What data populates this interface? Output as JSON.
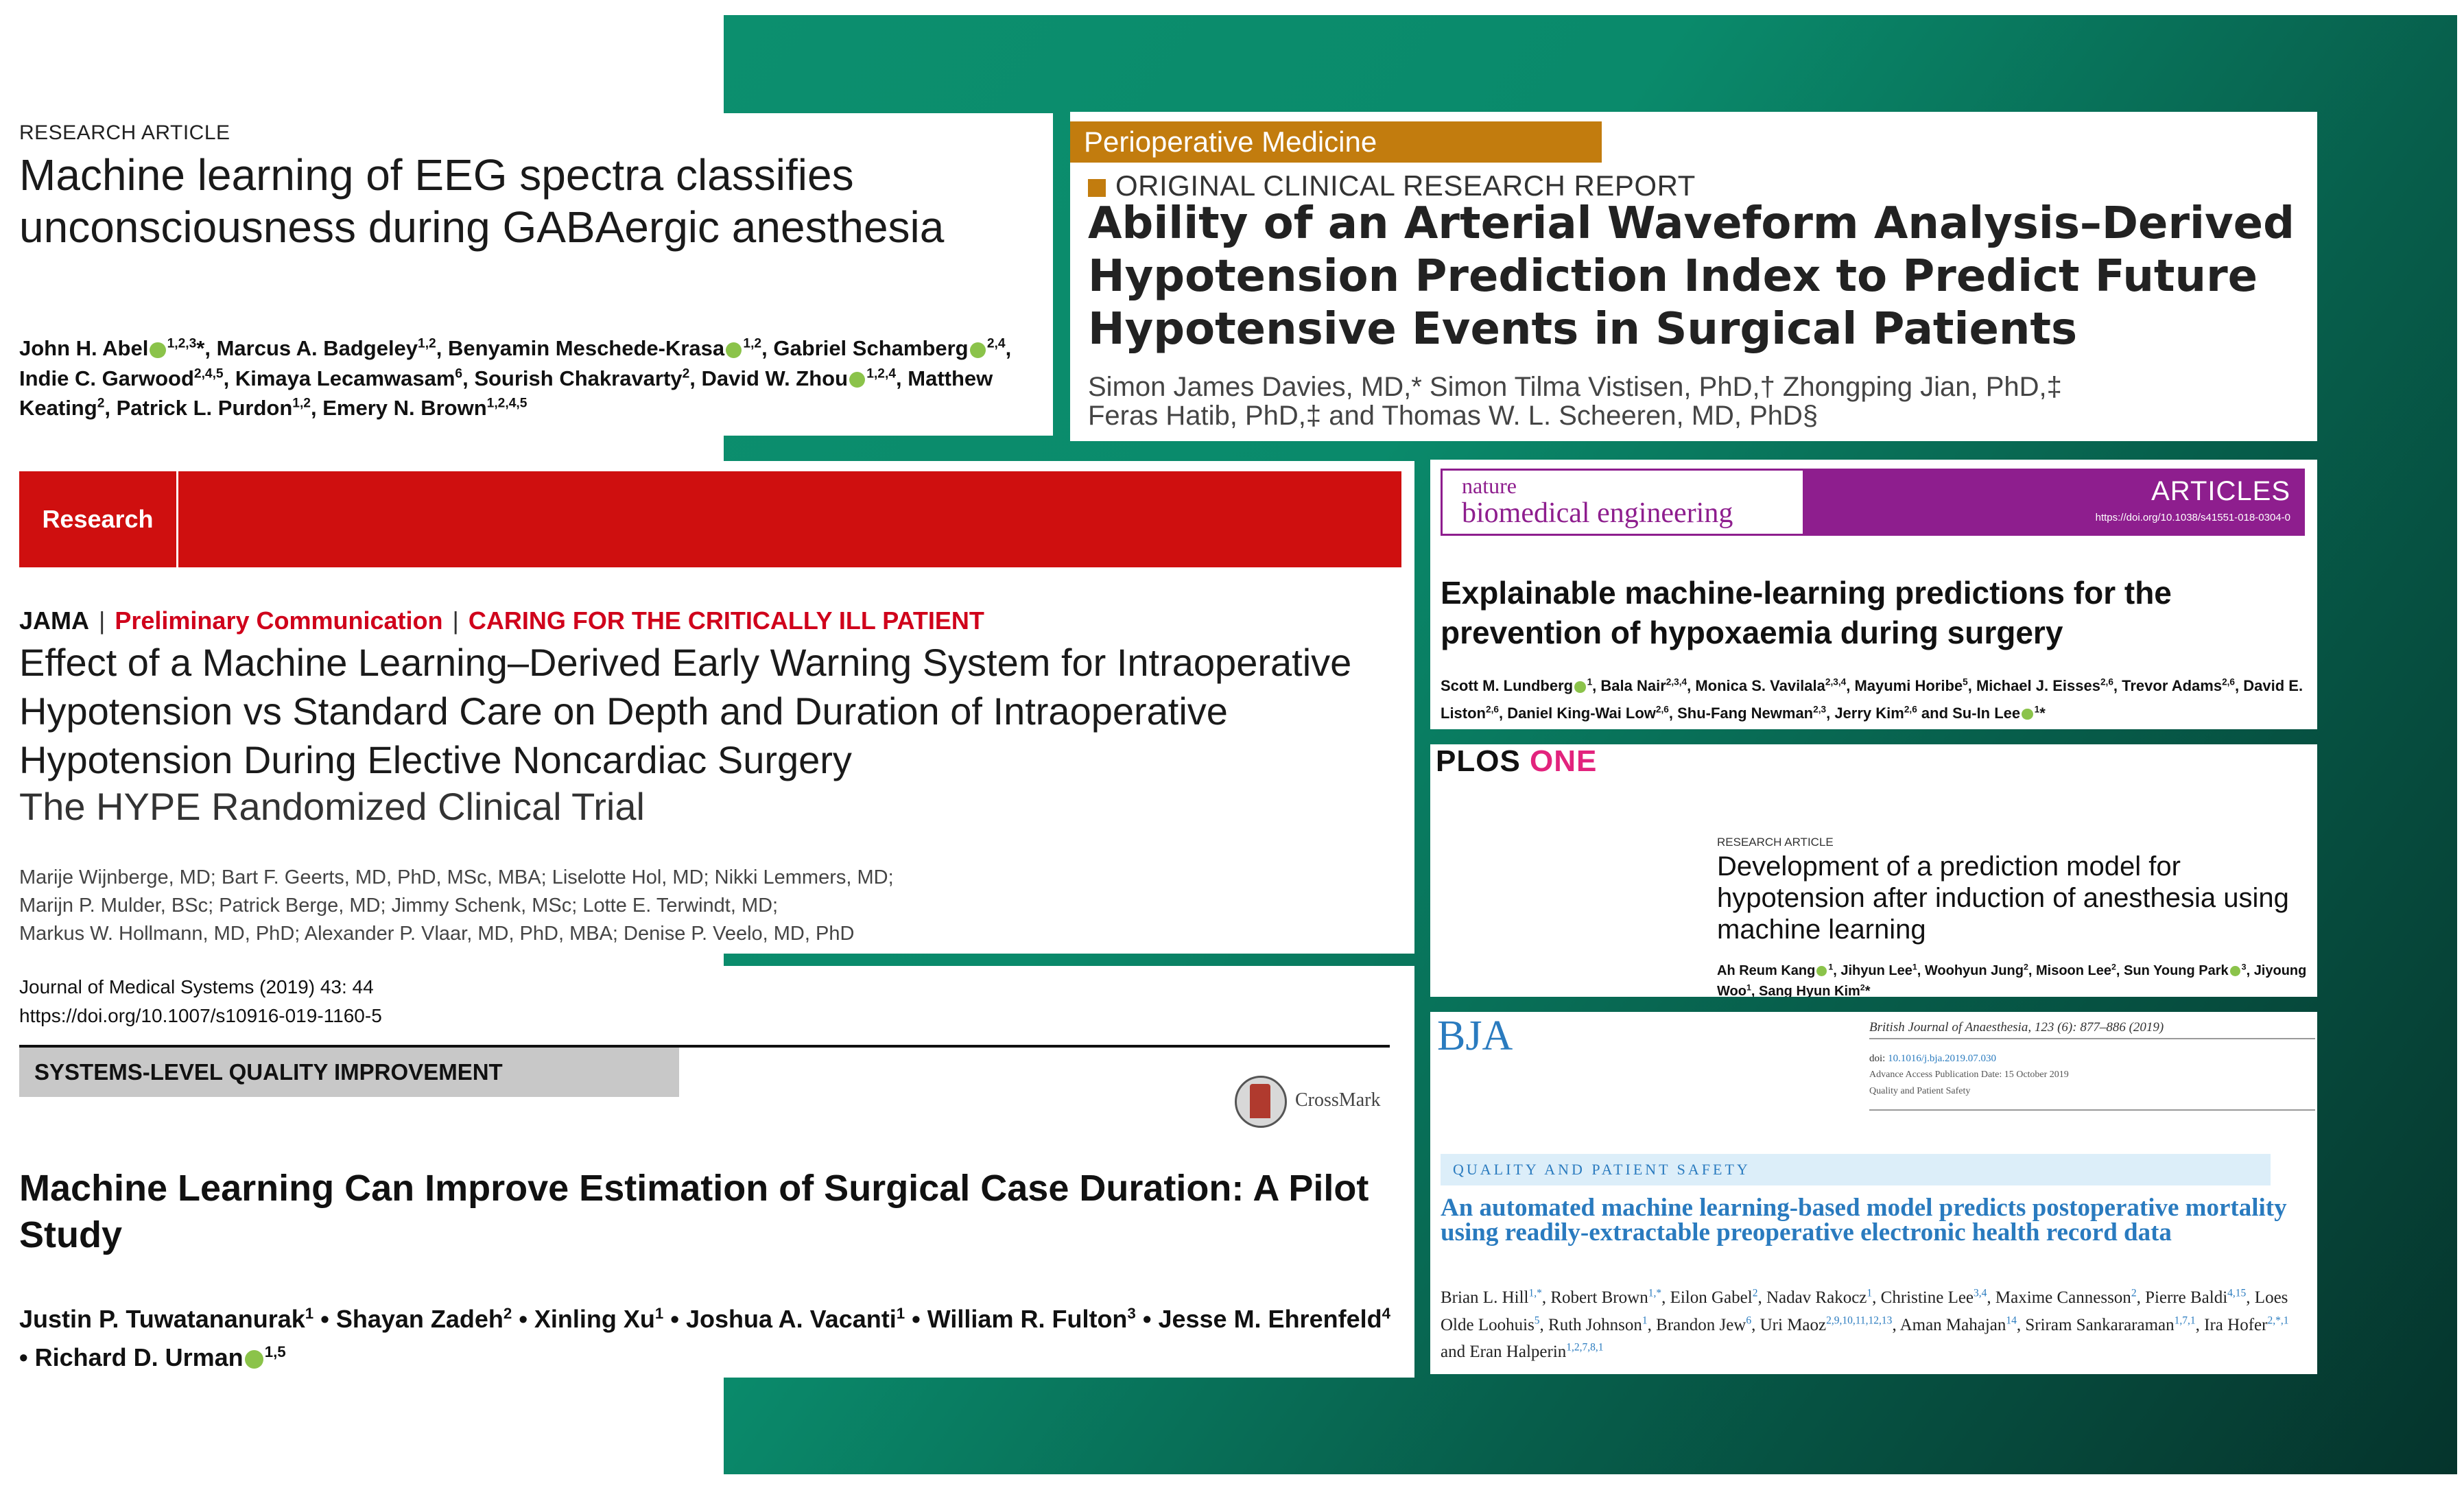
{
  "eeg": {
    "label": "RESEARCH ARTICLE",
    "title": "Machine learning of EEG spectra classifies unconsciousness during GABAergic anesthesia",
    "authors": [
      {
        "name": "John H. Abel",
        "sup": "1,2,3",
        "orcid": true,
        "suffix": "*,"
      },
      {
        "name": " Marcus A. Badgeley",
        "sup": "1,2",
        "suffix": ","
      },
      {
        "name": " Benyamin Meschede-Krasa",
        "orcid": true,
        "sup": "1,2",
        "suffix": ","
      },
      {
        "name": " Gabriel Schamberg",
        "orcid": true,
        "sup": "2,4",
        "suffix": ","
      },
      {
        "name": " Indie C. Garwood",
        "sup": "2,4,5",
        "suffix": ","
      },
      {
        "name": " Kimaya Lecamwasam",
        "sup": "6",
        "suffix": ","
      },
      {
        "name": " Sourish Chakravarty",
        "sup": "2",
        "suffix": ","
      },
      {
        "name": " David W. Zhou",
        "orcid": true,
        "sup": "1,2,4",
        "suffix": ","
      },
      {
        "name": " Matthew Keating",
        "sup": "2",
        "suffix": ","
      },
      {
        "name": " Patrick L. Purdon",
        "sup": "1,2",
        "suffix": ","
      },
      {
        "name": " Emery N. Brown",
        "sup": "1,2,4,5",
        "suffix": ""
      }
    ]
  },
  "periop": {
    "band": "Perioperative Medicine",
    "section": "ORIGINAL CLINICAL RESEARCH REPORT",
    "title": "Ability of an Arterial Waveform Analysis–Derived Hypotension Prediction Index to Predict Future Hypotensive Events in Surgical Patients",
    "authors_line1": "Simon James Davies, MD,* Simon Tilma Vistisen, PhD,† Zhongping Jian, PhD,‡",
    "authors_line2": "Feras Hatib, PhD,‡ and Thomas W. L. Scheeren, MD, PhD§"
  },
  "jama": {
    "band_label": "Research",
    "journal": "JAMA",
    "category1": "Preliminary Communication",
    "category2": "CARING FOR THE CRITICALLY ILL PATIENT",
    "title": "Effect of a Machine Learning–Derived Early Warning System for Intraoperative Hypotension vs Standard Care on Depth and Duration of Intraoperative Hypotension During Elective Noncardiac Surgery",
    "subtitle": "The HYPE Randomized Clinical Trial",
    "authors_line1": "Marije Wijnberge, MD; Bart F. Geerts, MD, PhD, MSc, MBA; Liselotte Hol, MD; Nikki Lemmers, MD;",
    "authors_line2": "Marijn P. Mulder, BSc; Patrick Berge, MD; Jimmy Schenk, MSc; Lotte E. Terwindt, MD;",
    "authors_line3": "Markus W. Hollmann, MD, PhD; Alexander P. Vlaar, MD, PhD, MBA; Denise P. Veelo, MD, PhD"
  },
  "jms": {
    "journal": "Journal of Medical Systems (2019) 43: 44",
    "doi": "https://doi.org/10.1007/s10916-019-1160-5",
    "section": "SYSTEMS-LEVEL QUALITY IMPROVEMENT",
    "crossmark": "CrossMark",
    "title": "Machine Learning Can Improve Estimation of Surgical Case Duration: A Pilot Study",
    "authors": [
      {
        "name": "Justin P. Tuwatananurak",
        "sup": "1",
        "suffix": " • "
      },
      {
        "name": "Shayan Zadeh",
        "sup": "2",
        "suffix": " • "
      },
      {
        "name": "Xinling Xu",
        "sup": "1",
        "suffix": " • "
      },
      {
        "name": "Joshua A. Vacanti",
        "sup": "1",
        "suffix": " • "
      },
      {
        "name": "William R. Fulton",
        "sup": "3",
        "suffix": " • "
      },
      {
        "name": "Jesse M. Ehrenfeld",
        "sup": "4",
        "suffix": " • "
      },
      {
        "name": "Richard D. Urman",
        "sup": "1,5",
        "orcid": true,
        "suffix": ""
      }
    ]
  },
  "nbe": {
    "logo_top": "nature",
    "logo_bottom": "biomedical engineering",
    "type": "ARTICLES",
    "doi": "https://doi.org/10.1038/s41551-018-0304-0",
    "title": "Explainable machine-learning predictions for the prevention of hypoxaemia during surgery",
    "authors": [
      {
        "name": "Scott M. Lundberg",
        "orcid": true,
        "sup": "1",
        "suffix": ", "
      },
      {
        "name": "Bala Nair",
        "sup": "2,3,4",
        "suffix": ", "
      },
      {
        "name": "Monica S. Vavilala",
        "sup": "2,3,4",
        "suffix": ", "
      },
      {
        "name": "Mayumi Horibe",
        "sup": "5",
        "suffix": ", "
      },
      {
        "name": "Michael J. Eisses",
        "sup": "2,6",
        "suffix": ", "
      },
      {
        "name": "Trevor Adams",
        "sup": "2,6",
        "suffix": ", "
      },
      {
        "name": "David E. Liston",
        "sup": "2,6",
        "suffix": ", "
      },
      {
        "name": "Daniel King-Wai Low",
        "sup": "2,6",
        "suffix": ", "
      },
      {
        "name": "Shu-Fang Newman",
        "sup": "2,3",
        "suffix": ", "
      },
      {
        "name": "Jerry Kim",
        "sup": "2,6",
        "suffix": " and "
      },
      {
        "name": "Su-In Lee",
        "orcid": true,
        "sup": "1",
        "suffix": "*"
      }
    ]
  },
  "plos": {
    "brand1": "PLOS",
    "brand2": "ONE",
    "label": "RESEARCH ARTICLE",
    "title": "Development of a prediction model for hypotension after induction of anesthesia using machine learning",
    "authors": [
      {
        "name": "Ah Reum Kang",
        "orcid": true,
        "sup": "1",
        "suffix": ", "
      },
      {
        "name": "Jihyun Lee",
        "sup": "1",
        "suffix": ", "
      },
      {
        "name": "Woohyun Jung",
        "sup": "2",
        "suffix": ", "
      },
      {
        "name": "Misoon Lee",
        "sup": "2",
        "suffix": ", "
      },
      {
        "name": "Sun Young Park",
        "orcid": true,
        "sup": "3",
        "suffix": ", "
      },
      {
        "name": "Jiyoung Woo",
        "sup": "1",
        "suffix": ", "
      },
      {
        "name": "Sang Hyun Kim",
        "sup": "2",
        "suffix": "*"
      }
    ]
  },
  "bja": {
    "logo": "BJA",
    "journal": "British Journal of Anaesthesia, 123 (6): 877–886 (2019)",
    "doi_label": "doi:",
    "doi": "10.1016/j.bja.2019.07.030",
    "pub": "Advance Access Publication Date: 15 October 2019",
    "section_small": "Quality and Patient Safety",
    "section": "QUALITY AND PATIENT SAFETY",
    "title": "An automated machine learning-based model predicts postoperative mortality using readily-extractable preoperative electronic health record data",
    "authors": [
      {
        "name": "Brian L. Hill",
        "sup": "1,*",
        "suffix": ", "
      },
      {
        "name": "Robert Brown",
        "sup": "1,*",
        "suffix": ", "
      },
      {
        "name": "Eilon Gabel",
        "sup": "2",
        "suffix": ", "
      },
      {
        "name": "Nadav Rakocz",
        "sup": "1",
        "suffix": ", "
      },
      {
        "name": "Christine Lee",
        "sup": "3,4",
        "suffix": ", "
      },
      {
        "name": "Maxime Cannesson",
        "sup": "2",
        "suffix": ", "
      },
      {
        "name": "Pierre Baldi",
        "sup": "4,15",
        "suffix": ", "
      },
      {
        "name": "Loes Olde Loohuis",
        "sup": "5",
        "suffix": ", "
      },
      {
        "name": "Ruth Johnson",
        "sup": "1",
        "suffix": ", "
      },
      {
        "name": "Brandon Jew",
        "sup": "6",
        "suffix": ", "
      },
      {
        "name": "Uri Maoz",
        "sup": "2,9,10,11,12,13",
        "suffix": ", "
      },
      {
        "name": "Aman Mahajan",
        "sup": "14",
        "suffix": ", "
      },
      {
        "name": "Sriram Sankararaman",
        "sup": "1,7,1",
        "suffix": ", "
      },
      {
        "name": "Ira Hofer",
        "sup": "2,*,1",
        "suffix": " and "
      },
      {
        "name": "Eran Halperin",
        "sup": "1,2,7,8,1",
        "suffix": ""
      }
    ]
  },
  "colors": {
    "background_green": "#0a8a6b",
    "periop_band": "#c27c0e",
    "jama_red": "#cf0f0f",
    "nature_purple": "#8e1e8e",
    "plos_pink": "#e2237d",
    "bja_blue": "#2a7bbf"
  }
}
